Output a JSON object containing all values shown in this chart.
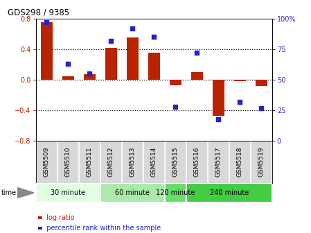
{
  "title": "GDS298 / 9385",
  "samples": [
    "GSM5509",
    "GSM5510",
    "GSM5511",
    "GSM5512",
    "GSM5513",
    "GSM5514",
    "GSM5515",
    "GSM5516",
    "GSM5517",
    "GSM5518",
    "GSM5519"
  ],
  "log_ratio": [
    0.75,
    0.05,
    0.07,
    0.42,
    0.55,
    0.35,
    -0.07,
    0.1,
    -0.47,
    -0.02,
    -0.08
  ],
  "percentile": [
    97,
    63,
    55,
    82,
    92,
    85,
    28,
    72,
    18,
    32,
    27
  ],
  "groups": [
    {
      "label": "30 minute",
      "start": 0,
      "end": 3,
      "color": "#e0ffe0"
    },
    {
      "label": "60 minute",
      "start": 3,
      "end": 6,
      "color": "#aaeaaa"
    },
    {
      "label": "120 minute",
      "start": 6,
      "end": 7,
      "color": "#66dd66"
    },
    {
      "label": "240 minute",
      "start": 7,
      "end": 11,
      "color": "#44cc44"
    }
  ],
  "bar_color": "#bb2200",
  "dot_color": "#2222cc",
  "ylim_left": [
    -0.8,
    0.8
  ],
  "ylim_right": [
    0,
    100
  ],
  "yticks_left": [
    -0.8,
    -0.4,
    0.0,
    0.4,
    0.8
  ],
  "yticks_right": [
    0,
    25,
    50,
    75,
    100
  ],
  "hlines": [
    0.4,
    0.0,
    -0.4
  ],
  "background_color": "#ffffff",
  "bar_width": 0.55,
  "label_bg": "#d8d8d8",
  "label_divider_color": "#ffffff"
}
